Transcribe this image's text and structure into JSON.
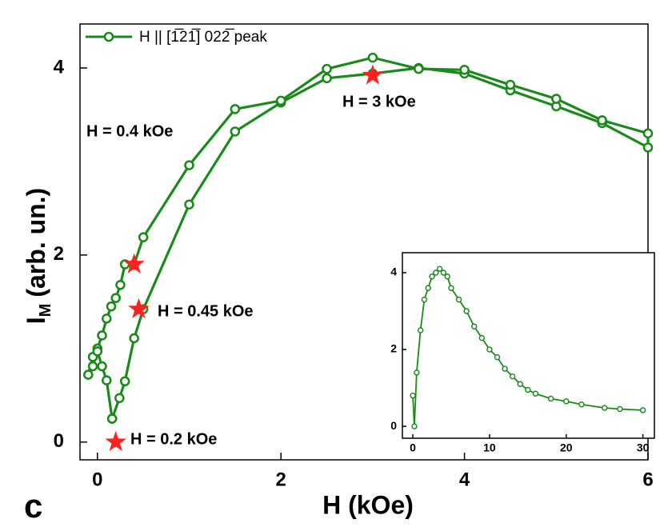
{
  "chart_data": [
    {
      "type": "line",
      "xlabel": "H (kOe)",
      "ylabel": "I",
      "ylabel_sub": "M",
      "ylabel_rest": "(arb. un.)",
      "panel_label": "c",
      "xlim": [
        -0.19,
        6.0
      ],
      "ylim": [
        -0.19,
        4.47
      ],
      "xticks": [
        0,
        2,
        4,
        6
      ],
      "yticks": [
        0,
        2,
        4
      ],
      "series": [
        {
          "name": "H || [1̅21̅] 022̅ peak",
          "color": "#1a8a1a",
          "x": [
            0.16,
            0.24,
            0.3,
            0.4,
            0.5,
            1.0,
            1.5,
            2.0,
            2.5,
            3.0,
            3.5,
            4.0,
            4.5,
            5.0,
            5.5,
            6.0,
            6.0,
            5.5,
            5.0,
            4.5,
            4.0,
            3.5,
            3.0,
            2.5,
            2.0,
            1.5,
            1.0,
            0.5,
            0.4,
            0.3,
            0.25,
            0.2,
            0.15,
            0.1,
            0.05,
            0.0,
            -0.05,
            -0.1,
            -0.05,
            0.0,
            0.05,
            0.1,
            0.16
          ],
          "values": [
            0.25,
            0.47,
            0.65,
            1.11,
            1.42,
            2.54,
            3.32,
            3.63,
            3.89,
            3.94,
            4.0,
            3.94,
            3.76,
            3.59,
            3.41,
            3.15,
            3.3,
            3.44,
            3.67,
            3.82,
            3.98,
            3.99,
            4.11,
            3.99,
            3.65,
            3.56,
            2.96,
            2.19,
            1.9,
            1.9,
            1.68,
            1.54,
            1.45,
            1.32,
            1.14,
            1.0,
            0.91,
            0.72,
            0.81,
            0.97,
            0.81,
            0.66,
            0.25
          ]
        }
      ],
      "highlights": {
        "color": "#ff2020",
        "x": [
          0.4,
          0.45,
          0.2,
          3
        ],
        "values": [
          1.9,
          1.42,
          0,
          3.92
        ]
      },
      "annotations": [
        "H = 0.4 kOe",
        "H = 0.45 kOe",
        "H = 0.2 kOe",
        "H = 3 kOe"
      ]
    },
    {
      "type": "line",
      "xlim": [
        -1.36,
        31.5
      ],
      "ylim": [
        -0.31,
        4.52
      ],
      "xticks": [
        0,
        10,
        20,
        30
      ],
      "yticks": [
        0,
        2,
        4
      ],
      "series": [
        {
          "color": "#1a8a1a",
          "x": [
            0,
            0.2,
            0.5,
            1,
            1.5,
            2,
            2.5,
            3,
            3.5,
            4,
            4.5,
            5,
            6,
            7,
            8,
            9,
            10,
            11,
            12,
            13,
            14,
            15,
            16,
            18,
            20,
            22,
            25,
            27,
            30
          ],
          "values": [
            0.8,
            0,
            1.4,
            2.5,
            3.3,
            3.6,
            3.9,
            4.0,
            4.1,
            4.0,
            3.9,
            3.6,
            3.3,
            3.0,
            2.6,
            2.3,
            2.0,
            1.8,
            1.5,
            1.3,
            1.1,
            0.95,
            0.85,
            0.72,
            0.65,
            0.57,
            0.48,
            0.45,
            0.42
          ]
        }
      ]
    }
  ]
}
